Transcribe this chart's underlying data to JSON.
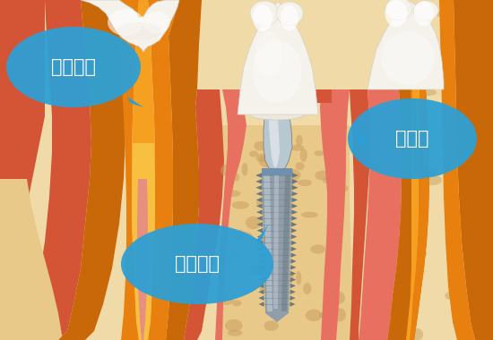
{
  "bg_color": "#ffffff",
  "bubble_color": "#2e9fd4",
  "bubble_text_color": "#ffffff",
  "labels": {
    "ilban": "일반치아",
    "crown": "크라운",
    "implant": "임플란트"
  },
  "figsize": [
    5.5,
    3.8
  ],
  "dpi": 100,
  "colors": {
    "bone_bg": "#e8c98a",
    "bone_light": "#f0dba8",
    "bone_holes": "#c9a060",
    "gum_outer": "#d45535",
    "gum_inner": "#e87060",
    "gum_pink": "#e89080",
    "orange_dark": "#c86808",
    "orange_mid": "#e88010",
    "orange_bright": "#f5a020",
    "orange_yellow": "#f8c040",
    "tooth_white": "#f5f2ec",
    "tooth_cream": "#ede8dc",
    "tooth_highlight": "#ffffff",
    "metal_light": "#b8c8d0",
    "metal_mid": "#909daa",
    "metal_dark": "#6a7880",
    "metal_ring": "#7090b0"
  }
}
